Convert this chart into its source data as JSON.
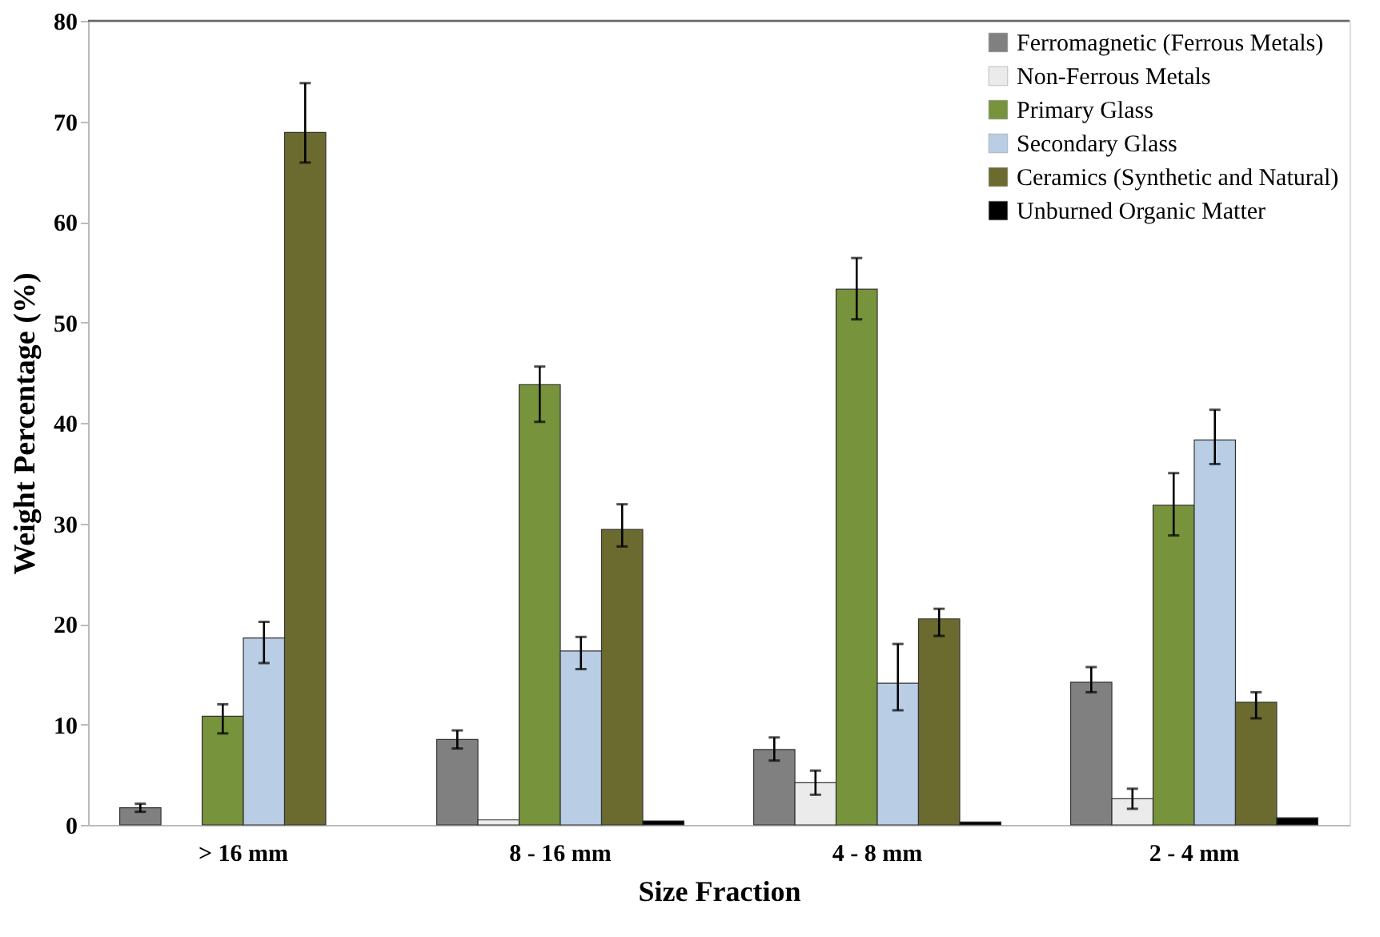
{
  "chart_data": {
    "type": "bar",
    "xlabel": "Size Fraction",
    "ylabel": "Weight Percentage (%)",
    "categories": [
      "> 16 mm",
      "8 - 16 mm",
      "4 - 8 mm",
      "2 - 4 mm"
    ],
    "ylim": [
      0,
      80
    ],
    "yticks": [
      0,
      10,
      20,
      30,
      40,
      50,
      60,
      70,
      80
    ],
    "grid": false,
    "legend": "top right",
    "series": [
      {
        "name": "Ferromagnetic (Ferrous Metals)",
        "color": "#808080",
        "values": [
          1.7,
          8.5,
          7.5,
          14.2
        ],
        "errors": [
          [
            1.3,
            2.1
          ],
          [
            7.6,
            9.4
          ],
          [
            6.4,
            8.7
          ],
          [
            13.2,
            15.7
          ]
        ]
      },
      {
        "name": "Non-Ferrous Metals",
        "color": "#ebebeb",
        "values": [
          null,
          0.5,
          4.2,
          2.6
        ],
        "errors": [
          null,
          null,
          [
            3.0,
            5.4
          ],
          [
            1.6,
            3.6
          ]
        ]
      },
      {
        "name": "Primary Glass",
        "color": "#77933c",
        "values": [
          10.8,
          43.8,
          53.3,
          31.8
        ],
        "errors": [
          [
            9.1,
            12.0
          ],
          [
            40.1,
            45.6
          ],
          [
            50.3,
            56.4
          ],
          [
            28.8,
            35.0
          ]
        ]
      },
      {
        "name": "Secondary Glass",
        "color": "#b9cde5",
        "values": [
          18.6,
          17.3,
          14.1,
          38.3
        ],
        "errors": [
          [
            16.1,
            20.2
          ],
          [
            15.5,
            18.7
          ],
          [
            11.4,
            18.0
          ],
          [
            35.9,
            41.3
          ]
        ]
      },
      {
        "name": "Ceramics (Synthetic and Natural)",
        "color": "#6b6b30",
        "values": [
          68.9,
          29.4,
          20.5,
          12.2
        ],
        "errors": [
          [
            65.9,
            73.8
          ],
          [
            27.7,
            31.9
          ],
          [
            18.8,
            21.5
          ],
          [
            10.6,
            13.2
          ]
        ]
      },
      {
        "name": "Unburned Organic Matter",
        "color": "#000000",
        "values": [
          null,
          0.4,
          0.3,
          0.7
        ],
        "errors": [
          null,
          null,
          null,
          null
        ]
      }
    ]
  }
}
